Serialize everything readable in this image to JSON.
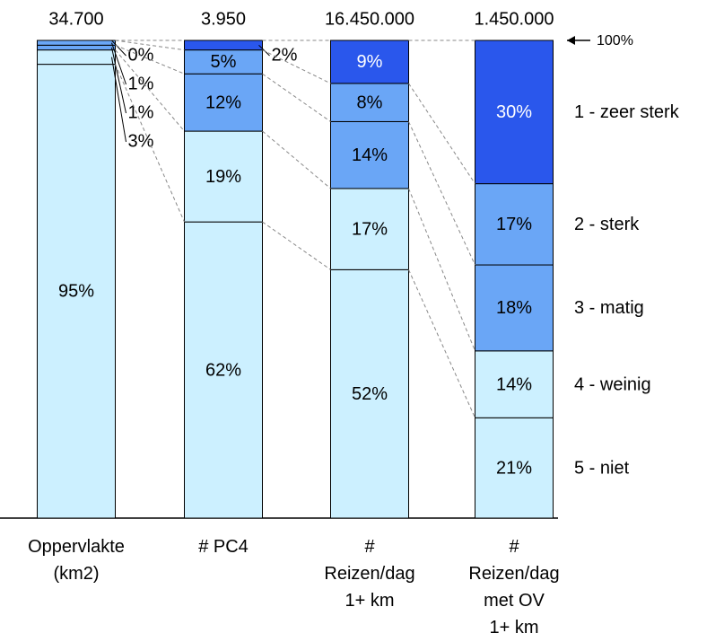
{
  "chart_data": {
    "type": "stacked_bar_100",
    "categories": [
      "Oppervlakte\n(km2)",
      "# PC4",
      "#\nReizen/dag\n1+ km",
      "#\nReizen/dag\nmet OV\n1+ km"
    ],
    "totals": [
      "34.700",
      "3.950",
      "16.450.000",
      "1.450.000"
    ],
    "annotation": "100%",
    "ylim": [
      0,
      100
    ],
    "series": [
      {
        "name": "5 - niet",
        "color": "#ccf0ff",
        "values": [
          95,
          62,
          52,
          21
        ],
        "value_labels": [
          "95%",
          "62%",
          "52%",
          "21%"
        ]
      },
      {
        "name": "4 - weinig",
        "color": "#ccf0ff",
        "values": [
          3,
          19,
          17,
          14
        ],
        "value_labels": [
          "3%",
          "19%",
          "17%",
          "14%"
        ]
      },
      {
        "name": "3 - matig",
        "color": "#6aa6f6",
        "values": [
          1,
          12,
          14,
          18
        ],
        "value_labels": [
          "1%",
          "12%",
          "14%",
          "18%"
        ]
      },
      {
        "name": "2 - sterk",
        "color": "#6aa6f6",
        "values": [
          1,
          5,
          8,
          17
        ],
        "value_labels": [
          "1%",
          "5%",
          "8%",
          "17%"
        ]
      },
      {
        "name": "1 - zeer sterk",
        "color": "#2a57ec",
        "values": [
          0,
          2,
          9,
          30
        ],
        "value_labels": [
          "0%",
          "2%",
          "9%",
          "30%"
        ]
      }
    ]
  }
}
